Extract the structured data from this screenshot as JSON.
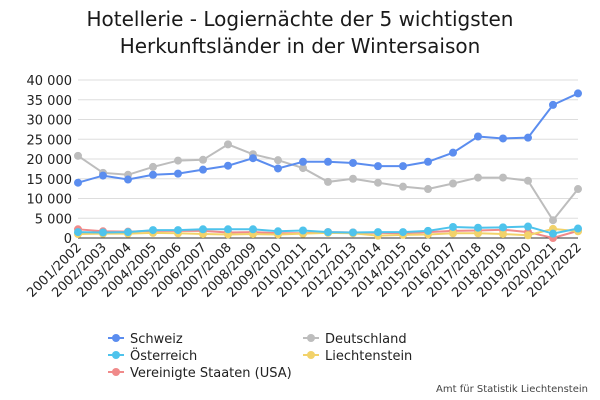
{
  "chart_data": {
    "type": "line",
    "title_lines": [
      "Hotellerie - Logiernächte der 5 wichtigsten",
      "Herkunftsländer in der Wintersaison"
    ],
    "categories": [
      "2001/2002",
      "2002/2003",
      "2003/2004",
      "2004/2005",
      "2005/2006",
      "2006/2007",
      "2007/2008",
      "2008/2009",
      "2009/2010",
      "2010/2011",
      "2011/2012",
      "2012/2013",
      "2013/2014",
      "2014/2015",
      "2015/2016",
      "2016/2017",
      "2017/2018",
      "2018/2019",
      "2019/2020",
      "2020/2021",
      "2021/2022"
    ],
    "ylim": [
      0,
      40000
    ],
    "yticks": [
      0,
      5000,
      10000,
      15000,
      20000,
      25000,
      30000,
      35000,
      40000
    ],
    "ytick_labels": [
      "0",
      "5 000",
      "10 000",
      "15 000",
      "20 000",
      "25 000",
      "30 000",
      "35 000",
      "40 000"
    ],
    "grid": "horizontal",
    "legend_position": "bottom",
    "series": [
      {
        "name": "Schweiz",
        "color": "#5b8def",
        "values": [
          14000,
          15800,
          14800,
          16000,
          16300,
          17300,
          18300,
          20200,
          17600,
          19300,
          19300,
          19000,
          18200,
          18200,
          19300,
          21600,
          25700,
          25200,
          25400,
          33700,
          36600
        ]
      },
      {
        "name": "Deutschland",
        "color": "#bdbdbd",
        "values": [
          20800,
          16500,
          16000,
          18000,
          19600,
          19800,
          23700,
          21200,
          19700,
          17700,
          14200,
          15000,
          14000,
          13000,
          12400,
          13800,
          15300,
          15300,
          14500,
          4500,
          12400
        ]
      },
      {
        "name": "Österreich",
        "color": "#4ec3ec",
        "values": [
          1500,
          1400,
          1500,
          2000,
          2000,
          2200,
          2200,
          2200,
          1700,
          1900,
          1500,
          1400,
          1500,
          1500,
          1800,
          2800,
          2600,
          2700,
          2900,
          1100,
          2400
        ]
      },
      {
        "name": "Liechtenstein",
        "color": "#f2d26a",
        "values": [
          1000,
          1100,
          1100,
          1300,
          1200,
          1000,
          900,
          1000,
          900,
          1100,
          1300,
          1200,
          600,
          800,
          900,
          1200,
          1200,
          1000,
          700,
          2300,
          1700
        ]
      },
      {
        "name": "Vereinigte Staaten (USA)",
        "color": "#f08a8a",
        "values": [
          2200,
          1700,
          1600,
          1800,
          1800,
          1800,
          1400,
          1500,
          1200,
          1200,
          1500,
          1400,
          1300,
          1200,
          1500,
          1800,
          1900,
          2100,
          1500,
          0,
          1800
        ]
      }
    ],
    "legend_order": [
      "Schweiz",
      "Deutschland",
      "Österreich",
      "Liechtenstein",
      "Vereinigte Staaten (USA)"
    ],
    "source": "Amt für Statistik Liechtenstein"
  }
}
